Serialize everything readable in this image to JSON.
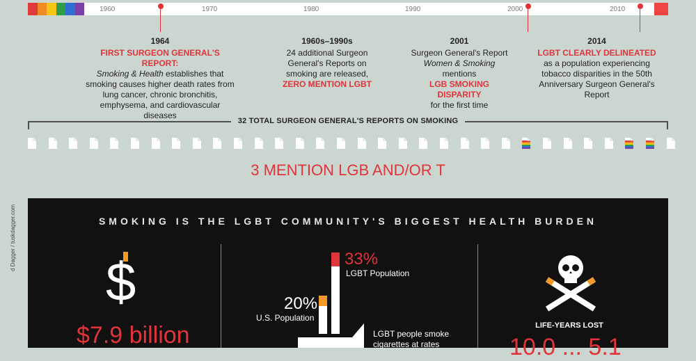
{
  "timeline": {
    "ticks": [
      "1960",
      "1970",
      "1980",
      "1990",
      "2000",
      "2010"
    ],
    "rainbow": [
      "#e03a3a",
      "#f08a24",
      "#f5c518",
      "#2e9e49",
      "#2e6fd1",
      "#7b3fa8"
    ],
    "events": [
      {
        "year": "1964",
        "red": "FIRST SURGEON GENERAL'S REPORT:",
        "ital": "Smoking & Health",
        "text": " establishes that smoking causes higher death rates from lung cancer, chronic bronchitis, emphysema, and cardiovascular diseases"
      },
      {
        "year": "1960s–1990s",
        "text": "24 additional Surgeon General's Reports on smoking are released,",
        "red": "ZERO MENTION LGBT"
      },
      {
        "year": "2001",
        "text": "Surgeon General's Report",
        "ital": "Women & Smoking",
        "text2": " mentions",
        "red": "LGB SMOKING DISPARITY",
        "text3": "for the first time"
      },
      {
        "year": "2014",
        "red": "LGBT CLEARLY DELINEATED",
        "text": "as a population experiencing tobacco disparities in the 50th Anniversary Surgeon General's Report"
      }
    ]
  },
  "reports": {
    "title": "32 TOTAL SURGEON GENERAL'S REPORTS ON SMOKING",
    "mention": "3 MENTION LGB AND/OR T"
  },
  "panel": {
    "heading": "SMOKING IS THE LGBT COMMUNITY'S BIGGEST HEALTH BURDEN",
    "dollar_symbol": "$",
    "cost": "$7.9 billion",
    "lgbt_pct": "33%",
    "lgbt_label": "LGBT Population",
    "us_pct": "20%",
    "us_label": "U.S. Population",
    "smoke_note_1": "LGBT people smoke",
    "smoke_note_2": "cigarettes at rates",
    "life_label": "LIFE-YEARS LOST",
    "life_value": "10.0 ... 5.1"
  },
  "credit": "d Dagger / tuskdagger.com"
}
